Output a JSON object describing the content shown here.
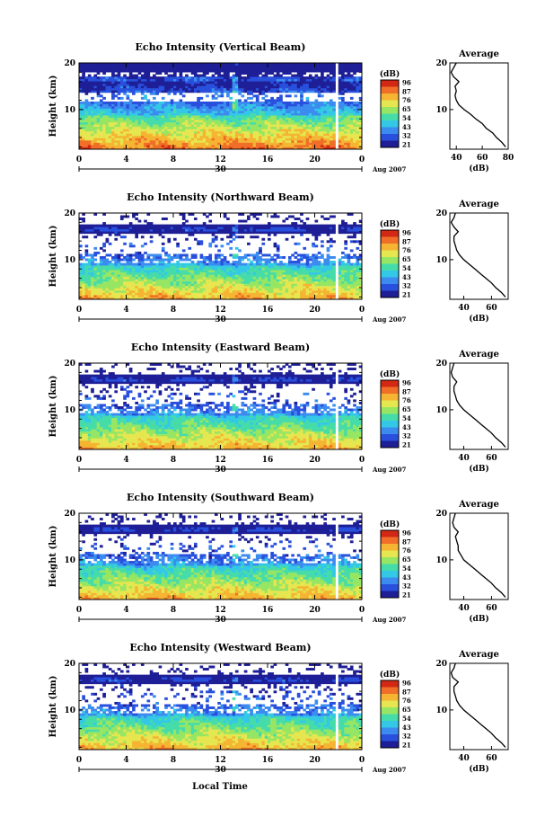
{
  "figure": {
    "x_axis_label": "Local Time",
    "date_label": "Aug 2007",
    "day_label": "30",
    "colorbar_unit": "(dB)",
    "colorbar_ticks": [
      "96",
      "87",
      "76",
      "65",
      "54",
      "43",
      "32",
      "21"
    ],
    "profile_title": "Average",
    "profile_xlabel": "(dB)",
    "colors": {
      "scale": [
        "#1e1e96",
        "#2850dc",
        "#3c8cf0",
        "#32c8e6",
        "#46dcaa",
        "#96e664",
        "#e6e650",
        "#f5b432",
        "#f06e28",
        "#d22814"
      ]
    }
  },
  "chart_data": [
    {
      "type": "heatmap",
      "title": "Echo Intensity (Vertical Beam)",
      "ylabel": "Height (km)",
      "xlabel": "Local Time",
      "x_ticks": [
        "0",
        "4",
        "8",
        "12",
        "16",
        "20",
        "0"
      ],
      "y_ticks": [
        "20",
        "10"
      ],
      "xlim": [
        0,
        24
      ],
      "ylim": [
        1.5,
        20
      ],
      "zlim": [
        21,
        96
      ],
      "gap_hour": 21.8,
      "profile": {
        "title": "Average",
        "xlabel": "(dB)",
        "x_ticks": [
          "40",
          "60",
          "80"
        ],
        "xlim": [
          35,
          80
        ],
        "y_ticks": [
          "20",
          "10"
        ],
        "points": [
          [
            78,
            2
          ],
          [
            75,
            3
          ],
          [
            71,
            4
          ],
          [
            68,
            5
          ],
          [
            63,
            6
          ],
          [
            60,
            7
          ],
          [
            55,
            8
          ],
          [
            51,
            9
          ],
          [
            46,
            10
          ],
          [
            42,
            11
          ],
          [
            40,
            12
          ],
          [
            39,
            13
          ],
          [
            40,
            14
          ],
          [
            39,
            15
          ],
          [
            42,
            16
          ],
          [
            38,
            17
          ],
          [
            36,
            18
          ],
          [
            38,
            19
          ],
          [
            40,
            20
          ]
        ]
      }
    },
    {
      "type": "heatmap",
      "title": "Echo Intensity (Northward Beam)",
      "ylabel": "Height (km)",
      "xlabel": "Local Time",
      "x_ticks": [
        "0",
        "4",
        "8",
        "12",
        "16",
        "20",
        "0"
      ],
      "y_ticks": [
        "20",
        "10"
      ],
      "xlim": [
        0,
        24
      ],
      "ylim": [
        1.5,
        20
      ],
      "zlim": [
        21,
        96
      ],
      "gap_hour": 21.8,
      "profile": {
        "title": "Average",
        "xlabel": "(dB)",
        "x_ticks": [
          "40",
          "60"
        ],
        "xlim": [
          30,
          72
        ],
        "y_ticks": [
          "20",
          "10"
        ],
        "points": [
          [
            70,
            2
          ],
          [
            67,
            3
          ],
          [
            63,
            4
          ],
          [
            60,
            5
          ],
          [
            56,
            6
          ],
          [
            52,
            7
          ],
          [
            48,
            8
          ],
          [
            44,
            9
          ],
          [
            40,
            10
          ],
          [
            37,
            11
          ],
          [
            35,
            12
          ],
          [
            34,
            13
          ],
          [
            33,
            14
          ],
          [
            33,
            15
          ],
          [
            36,
            16
          ],
          [
            33,
            17
          ],
          [
            31,
            18
          ],
          [
            33,
            19
          ],
          [
            34,
            20
          ]
        ]
      }
    },
    {
      "type": "heatmap",
      "title": "Echo Intensity (Eastward Beam)",
      "ylabel": "Height (km)",
      "xlabel": "Local Time",
      "x_ticks": [
        "0",
        "4",
        "8",
        "12",
        "16",
        "20",
        "0"
      ],
      "y_ticks": [
        "20",
        "10"
      ],
      "xlim": [
        0,
        24
      ],
      "ylim": [
        1.5,
        20
      ],
      "zlim": [
        21,
        96
      ],
      "gap_hour": 21.8,
      "profile": {
        "title": "Average",
        "xlabel": "(dB)",
        "x_ticks": [
          "40",
          "60"
        ],
        "xlim": [
          30,
          72
        ],
        "y_ticks": [
          "20",
          "10"
        ],
        "points": [
          [
            70,
            2
          ],
          [
            67,
            3
          ],
          [
            63,
            4
          ],
          [
            60,
            5
          ],
          [
            56,
            6
          ],
          [
            52,
            7
          ],
          [
            48,
            8
          ],
          [
            44,
            9
          ],
          [
            40,
            10
          ],
          [
            37,
            11
          ],
          [
            35,
            12
          ],
          [
            34,
            13
          ],
          [
            33,
            14
          ],
          [
            33,
            15
          ],
          [
            35,
            16
          ],
          [
            32,
            17
          ],
          [
            31,
            18
          ],
          [
            32,
            19
          ],
          [
            33,
            20
          ]
        ]
      }
    },
    {
      "type": "heatmap",
      "title": "Echo Intensity (Southward Beam)",
      "ylabel": "Height (km)",
      "xlabel": "Local Time",
      "x_ticks": [
        "0",
        "4",
        "8",
        "12",
        "16",
        "20",
        "0"
      ],
      "y_ticks": [
        "20",
        "10"
      ],
      "xlim": [
        0,
        24
      ],
      "ylim": [
        1.5,
        20
      ],
      "zlim": [
        21,
        96
      ],
      "gap_hour": 21.8,
      "profile": {
        "title": "Average",
        "xlabel": "(dB)",
        "x_ticks": [
          "40",
          "60"
        ],
        "xlim": [
          30,
          72
        ],
        "y_ticks": [
          "20",
          "10"
        ],
        "points": [
          [
            70,
            2
          ],
          [
            67,
            3
          ],
          [
            63,
            4
          ],
          [
            60,
            5
          ],
          [
            56,
            6
          ],
          [
            52,
            7
          ],
          [
            48,
            8
          ],
          [
            44,
            9
          ],
          [
            40,
            10
          ],
          [
            38,
            11
          ],
          [
            36,
            12
          ],
          [
            36,
            13
          ],
          [
            35,
            14
          ],
          [
            34,
            15
          ],
          [
            36,
            16
          ],
          [
            33,
            17
          ],
          [
            32,
            18
          ],
          [
            33,
            19
          ],
          [
            34,
            20
          ]
        ]
      }
    },
    {
      "type": "heatmap",
      "title": "Echo Intensity (Westward Beam)",
      "ylabel": "Height (km)",
      "xlabel": "Local Time",
      "x_ticks": [
        "0",
        "4",
        "8",
        "12",
        "16",
        "20",
        "0"
      ],
      "y_ticks": [
        "20",
        "10"
      ],
      "xlim": [
        0,
        24
      ],
      "ylim": [
        1.5,
        20
      ],
      "zlim": [
        21,
        96
      ],
      "gap_hour": 21.8,
      "profile": {
        "title": "Average",
        "xlabel": "(dB)",
        "x_ticks": [
          "40",
          "60"
        ],
        "xlim": [
          30,
          72
        ],
        "y_ticks": [
          "20",
          "10"
        ],
        "points": [
          [
            70,
            2
          ],
          [
            67,
            3
          ],
          [
            63,
            4
          ],
          [
            60,
            5
          ],
          [
            56,
            6
          ],
          [
            52,
            7
          ],
          [
            48,
            8
          ],
          [
            44,
            9
          ],
          [
            40,
            10
          ],
          [
            37,
            11
          ],
          [
            35,
            12
          ],
          [
            34,
            13
          ],
          [
            33,
            14
          ],
          [
            33,
            15
          ],
          [
            36,
            16
          ],
          [
            32,
            17
          ],
          [
            31,
            18
          ],
          [
            33,
            19
          ],
          [
            34,
            20
          ]
        ]
      }
    }
  ]
}
